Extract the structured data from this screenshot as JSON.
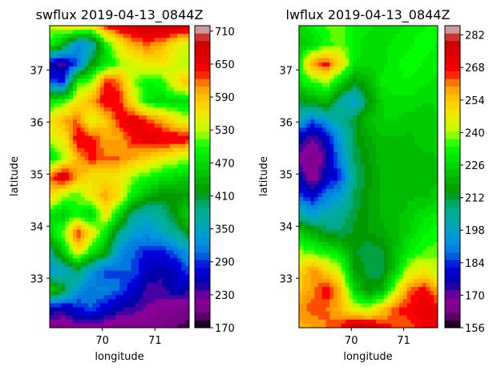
{
  "chart_data": [
    {
      "type": "heatmap",
      "title": "swflux 2019-04-13_0844Z",
      "xlabel": "longitude",
      "ylabel": "latitude",
      "xlim": [
        69.0,
        71.65
      ],
      "ylim": [
        32.05,
        37.85
      ],
      "x_ticks": [
        70,
        71
      ],
      "x_tick_labels": [
        "70",
        "71"
      ],
      "y_ticks": [
        33,
        34,
        35,
        36,
        37
      ],
      "y_tick_labels": [
        "33",
        "34",
        "35",
        "36",
        "37"
      ],
      "colorbar": {
        "min": 170,
        "max": 720,
        "colormap": "nipy_spectral",
        "ticks": [
          170,
          230,
          290,
          350,
          410,
          470,
          530,
          590,
          650,
          710
        ],
        "tick_labels": [
          "170",
          "230",
          "290",
          "350",
          "410",
          "470",
          "530",
          "590",
          "650",
          "710"
        ]
      },
      "z_sample_grid": {
        "row_order": "north-to-south",
        "x_range": [
          69.0,
          71.65
        ],
        "y_range": [
          37.85,
          32.05
        ],
        "values": [
          [
            530,
            560,
            590,
            560,
            640,
            660,
            680,
            690,
            700,
            690,
            680
          ],
          [
            500,
            430,
            320,
            350,
            480,
            560,
            600,
            620,
            600,
            560,
            540
          ],
          [
            250,
            240,
            300,
            420,
            470,
            520,
            540,
            560,
            560,
            540,
            520
          ],
          [
            300,
            280,
            500,
            520,
            640,
            620,
            520,
            490,
            500,
            560,
            600
          ],
          [
            480,
            500,
            560,
            600,
            650,
            640,
            560,
            480,
            470,
            470,
            470
          ],
          [
            560,
            600,
            620,
            540,
            580,
            640,
            660,
            630,
            600,
            560,
            530
          ],
          [
            540,
            560,
            650,
            640,
            600,
            600,
            640,
            660,
            660,
            660,
            650
          ],
          [
            470,
            520,
            600,
            640,
            620,
            620,
            600,
            580,
            560,
            540,
            520
          ],
          [
            620,
            680,
            600,
            560,
            570,
            560,
            520,
            500,
            480,
            470,
            460
          ],
          [
            580,
            520,
            510,
            560,
            600,
            560,
            480,
            440,
            420,
            420,
            420
          ],
          [
            480,
            460,
            500,
            460,
            560,
            470,
            380,
            360,
            380,
            420,
            470
          ],
          [
            470,
            520,
            640,
            560,
            480,
            380,
            340,
            330,
            350,
            380,
            420
          ],
          [
            380,
            460,
            560,
            480,
            430,
            330,
            300,
            280,
            280,
            300,
            340
          ],
          [
            330,
            350,
            400,
            330,
            290,
            300,
            300,
            260,
            250,
            260,
            300
          ],
          [
            470,
            420,
            330,
            310,
            320,
            300,
            270,
            240,
            240,
            260,
            250
          ],
          [
            260,
            250,
            280,
            300,
            270,
            250,
            240,
            230,
            220,
            210,
            200
          ],
          [
            210,
            210,
            220,
            215,
            210,
            205,
            210,
            215,
            200,
            190,
            180
          ]
        ]
      }
    },
    {
      "type": "heatmap",
      "title": "lwflux 2019-04-13_0844Z",
      "xlabel": "longitude",
      "ylabel": "latitude",
      "xlim": [
        69.0,
        71.65
      ],
      "ylim": [
        32.05,
        37.85
      ],
      "x_ticks": [
        70,
        71
      ],
      "x_tick_labels": [
        "70",
        "71"
      ],
      "y_ticks": [
        33,
        34,
        35,
        36,
        37
      ],
      "y_tick_labels": [
        "33",
        "34",
        "35",
        "36",
        "37"
      ],
      "colorbar": {
        "min": 156,
        "max": 286,
        "colormap": "nipy_spectral",
        "ticks": [
          156,
          170,
          184,
          198,
          212,
          226,
          240,
          254,
          268,
          282
        ],
        "tick_labels": [
          "156",
          "170",
          "184",
          "198",
          "212",
          "226",
          "240",
          "254",
          "268",
          "282"
        ]
      },
      "z_sample_grid": {
        "row_order": "north-to-south",
        "x_range": [
          69.0,
          71.65
        ],
        "y_range": [
          37.85,
          32.05
        ],
        "values": [
          [
            226,
            232,
            236,
            238,
            232,
            230,
            228,
            228,
            230,
            232,
            234
          ],
          [
            224,
            226,
            234,
            238,
            232,
            226,
            228,
            230,
            232,
            234,
            232
          ],
          [
            232,
            260,
            268,
            250,
            230,
            226,
            228,
            232,
            234,
            232,
            230
          ],
          [
            230,
            234,
            240,
            226,
            214,
            220,
            230,
            232,
            232,
            230,
            228
          ],
          [
            212,
            218,
            222,
            204,
            196,
            214,
            226,
            228,
            228,
            226,
            226
          ],
          [
            200,
            188,
            196,
            206,
            212,
            222,
            226,
            226,
            224,
            224,
            226
          ],
          [
            176,
            170,
            178,
            196,
            212,
            218,
            222,
            222,
            222,
            224,
            226
          ],
          [
            170,
            164,
            174,
            192,
            210,
            216,
            222,
            222,
            222,
            222,
            222
          ],
          [
            176,
            166,
            178,
            184,
            208,
            214,
            220,
            222,
            220,
            220,
            222
          ],
          [
            186,
            180,
            190,
            196,
            210,
            216,
            220,
            220,
            222,
            222,
            224
          ],
          [
            204,
            196,
            202,
            206,
            212,
            216,
            220,
            222,
            224,
            228,
            230
          ],
          [
            226,
            220,
            212,
            210,
            214,
            216,
            218,
            222,
            226,
            232,
            234
          ],
          [
            240,
            236,
            232,
            228,
            214,
            210,
            212,
            222,
            232,
            236,
            238
          ],
          [
            250,
            262,
            252,
            240,
            216,
            212,
            210,
            226,
            244,
            248,
            240
          ],
          [
            254,
            260,
            268,
            256,
            226,
            214,
            220,
            244,
            262,
            268,
            258
          ],
          [
            260,
            264,
            262,
            256,
            244,
            240,
            252,
            264,
            268,
            272,
            268
          ],
          [
            256,
            258,
            262,
            266,
            282,
            278,
            270,
            264,
            262,
            268,
            270
          ]
        ]
      }
    }
  ]
}
